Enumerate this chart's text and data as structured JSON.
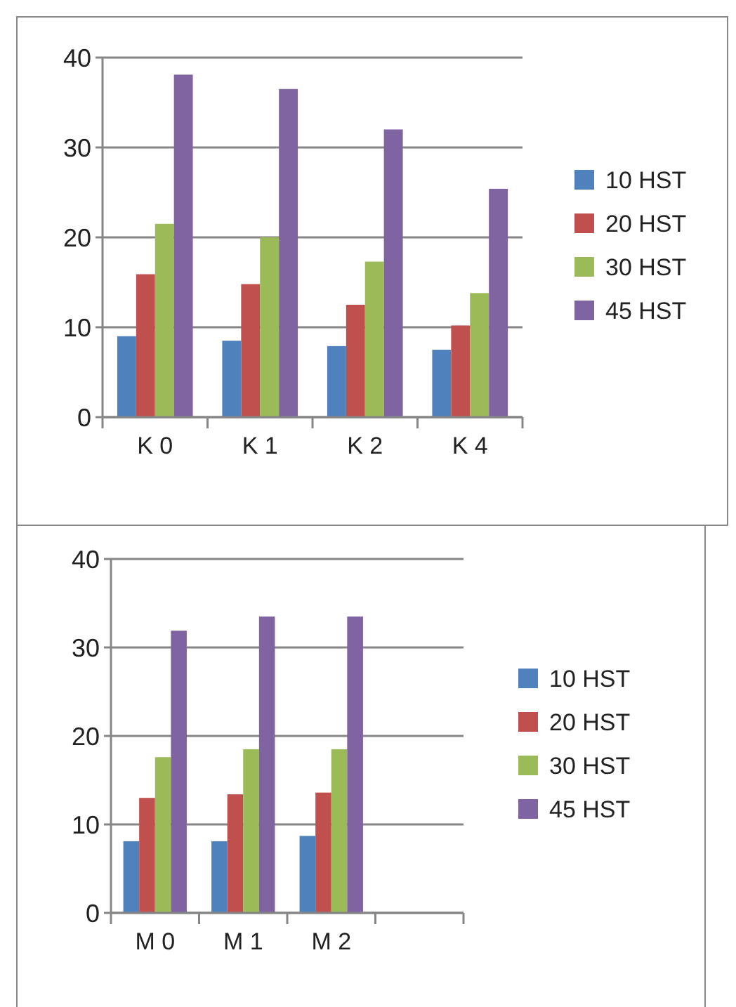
{
  "chart_data": [
    {
      "type": "bar",
      "categories": [
        "K 0",
        "K 1",
        "K 2",
        "K 4"
      ],
      "ylim": [
        0,
        40
      ],
      "yticks": [
        0,
        10,
        20,
        30,
        40
      ],
      "grid": "y",
      "legend": "right",
      "series": [
        {
          "name": "10 HST",
          "color": "#4f81bd",
          "values": [
            9.0,
            8.5,
            7.9,
            7.5
          ]
        },
        {
          "name": "20 HST",
          "color": "#c0504d",
          "values": [
            15.9,
            14.8,
            12.5,
            10.2
          ]
        },
        {
          "name": "30 HST",
          "color": "#9bbb59",
          "values": [
            21.5,
            20.0,
            17.3,
            13.8
          ]
        },
        {
          "name": "45 HST",
          "color": "#8064a2",
          "values": [
            38.1,
            36.5,
            32.0,
            25.4
          ]
        }
      ]
    },
    {
      "type": "bar",
      "categories": [
        "M 0",
        "M 1",
        "M 2",
        null
      ],
      "ylim": [
        0,
        40
      ],
      "yticks": [
        0,
        10,
        20,
        30,
        40
      ],
      "grid": "y",
      "legend": "right",
      "series": [
        {
          "name": "10 HST",
          "color": "#4f81bd",
          "values": [
            8.1,
            8.1,
            8.7,
            null
          ]
        },
        {
          "name": "20 HST",
          "color": "#c0504d",
          "values": [
            13.0,
            13.4,
            13.6,
            null
          ]
        },
        {
          "name": "30 HST",
          "color": "#9bbb59",
          "values": [
            17.6,
            18.5,
            18.5,
            null
          ]
        },
        {
          "name": "45 HST",
          "color": "#8064a2",
          "values": [
            31.9,
            33.5,
            33.5,
            null
          ]
        }
      ]
    }
  ]
}
